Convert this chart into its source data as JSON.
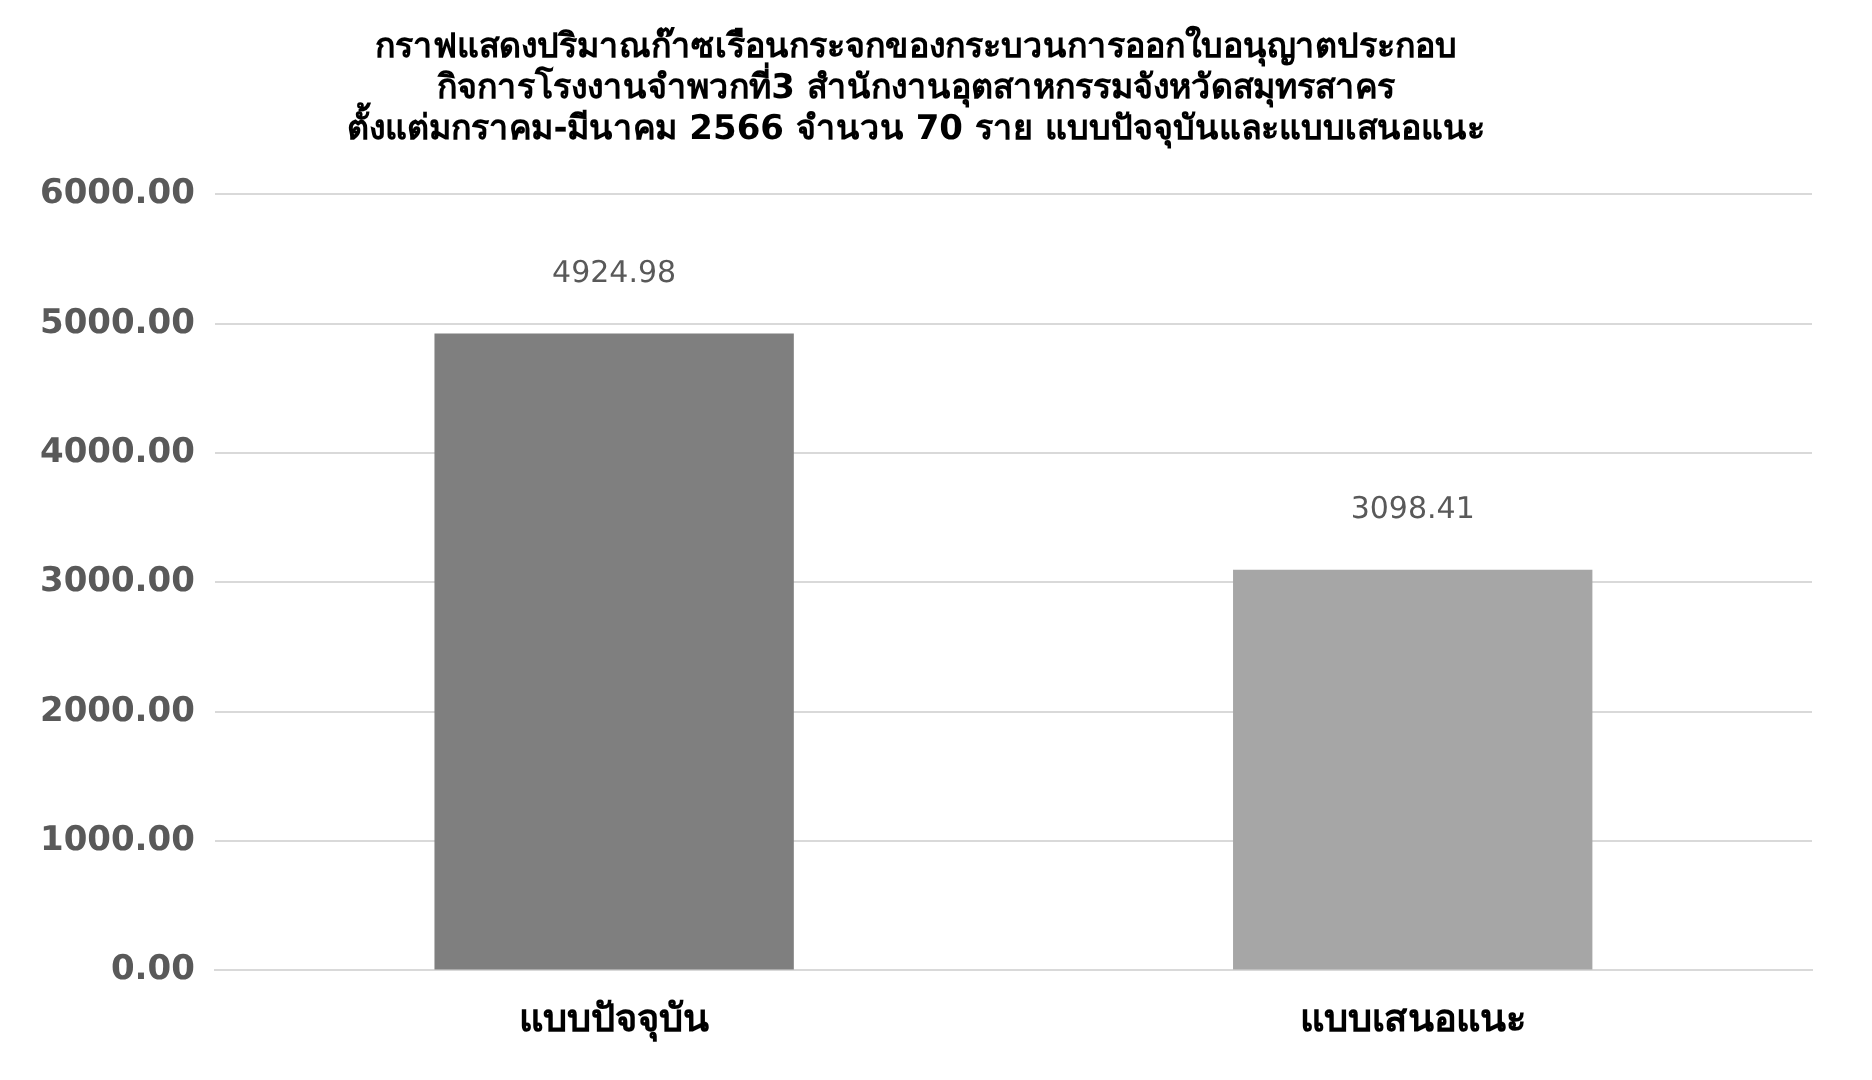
{
  "chart_data": {
    "type": "bar",
    "title": "กราฟแสดงปริมาณก๊าซเรือนกระจกของกระบวนการออกใบอนุญาตประกอบ\nกิจการโรงงานจำพวกที่3 สำนักงานอุตสาหกรรมจังหวัดสมุทรสาคร\nตั้งแต่มกราคม-มีนาคม 2566 จำนวน 70 ราย แบบปัจจุบันและแบบเสนอแนะ",
    "categories": [
      "แบบปัจจุบัน",
      "แบบเสนอแนะ"
    ],
    "values": [
      4924.98,
      3098.41
    ],
    "colors": [
      "#7f7f7f",
      "#a6a6a6"
    ],
    "value_labels": [
      "4924.98",
      "3098.41"
    ],
    "ylim": [
      0,
      6000
    ],
    "yticks": [
      {
        "value": 0,
        "label": "0.00"
      },
      {
        "value": 1000,
        "label": "1000.00"
      },
      {
        "value": 2000,
        "label": "2000.00"
      },
      {
        "value": 3000,
        "label": "3000.00"
      },
      {
        "value": 4000,
        "label": "4000.00"
      },
      {
        "value": 5000,
        "label": "5000.00"
      },
      {
        "value": 6000,
        "label": "6000.00"
      }
    ],
    "grid": "y",
    "legend": false
  }
}
